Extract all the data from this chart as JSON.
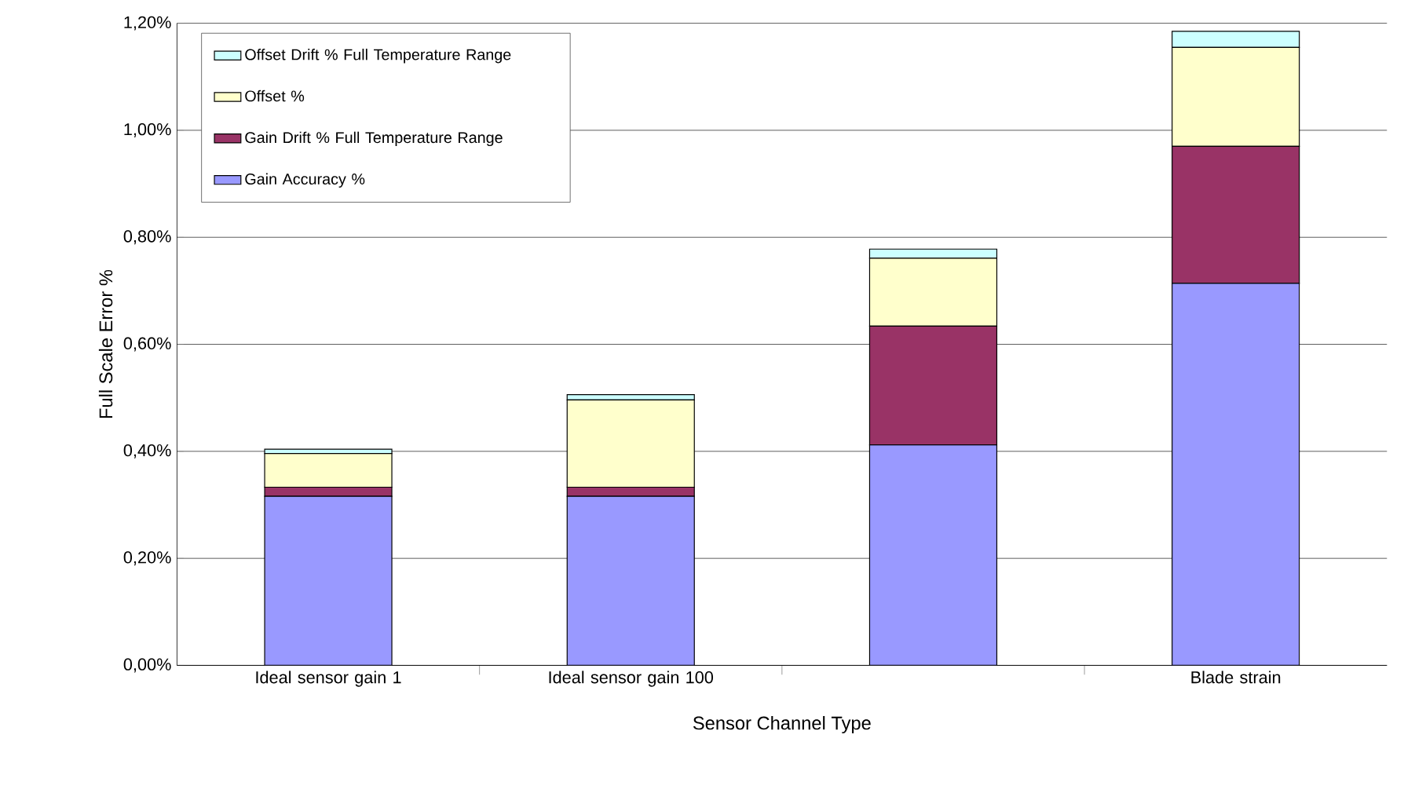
{
  "chart_data": {
    "type": "bar",
    "stacked": true,
    "xlabel": "Sensor Channel Type",
    "ylabel": "Full Scale Error %",
    "categories": [
      "Ideal sensor gain 1",
      "Ideal sensor gain 100",
      null,
      "Blade strain"
    ],
    "series": [
      {
        "name": "Gain Accuracy %",
        "color": "#9999ff",
        "values": [
          0.316,
          0.316,
          0.412,
          0.714
        ]
      },
      {
        "name": "Gain Drift % Full Temperature Range",
        "color": "#993366",
        "values": [
          0.017,
          0.017,
          0.222,
          0.256
        ]
      },
      {
        "name": "Offset %",
        "color": "#ffffcc",
        "values": [
          0.063,
          0.163,
          0.127,
          0.185
        ]
      },
      {
        "name": "Offset Drift % Full Temperature Range",
        "color": "#ccffff",
        "values": [
          0.008,
          0.01,
          0.017,
          0.03
        ]
      }
    ],
    "ylim": [
      0,
      1.2
    ],
    "yticks": [
      {
        "value": 0,
        "label": "0,00%"
      },
      {
        "value": 0.2,
        "label": "0,20%"
      },
      {
        "value": 0.4,
        "label": "0,40%"
      },
      {
        "value": 0.6,
        "label": "0,60%"
      },
      {
        "value": 0.8,
        "label": "0,80%"
      },
      {
        "value": 1.0,
        "label": "1,00%"
      },
      {
        "value": 1.2,
        "label": "1,20%"
      }
    ],
    "grid": "y",
    "legend": "top left"
  }
}
